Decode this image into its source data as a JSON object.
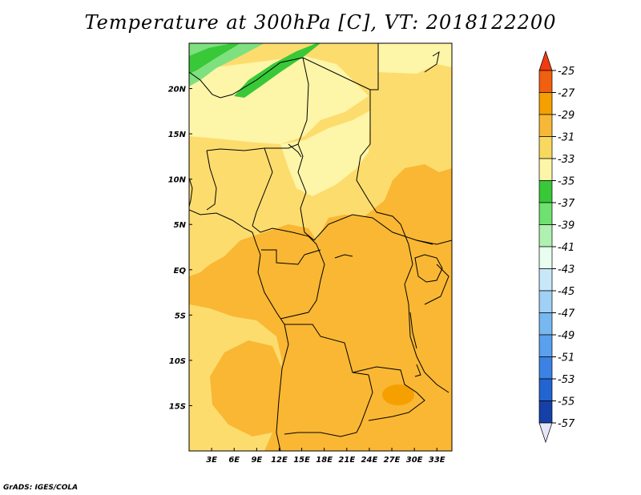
{
  "title": "Temperature at 300hPa [C], VT: 2018122200",
  "credit": "GrADS: IGES/COLA",
  "map": {
    "lon_range": [
      0,
      35
    ],
    "lat_range": [
      -20,
      25
    ],
    "x_ticks": [
      {
        "lon": 3,
        "label": "3E"
      },
      {
        "lon": 6,
        "label": "6E"
      },
      {
        "lon": 9,
        "label": "9E"
      },
      {
        "lon": 12,
        "label": "12E"
      },
      {
        "lon": 15,
        "label": "15E"
      },
      {
        "lon": 18,
        "label": "18E"
      },
      {
        "lon": 21,
        "label": "21E"
      },
      {
        "lon": 24,
        "label": "24E"
      },
      {
        "lon": 27,
        "label": "27E"
      },
      {
        "lon": 30,
        "label": "30E"
      },
      {
        "lon": 33,
        "label": "33E"
      }
    ],
    "y_ticks": [
      {
        "lat": 20,
        "label": "20N"
      },
      {
        "lat": 15,
        "label": "15N"
      },
      {
        "lat": 10,
        "label": "10N"
      },
      {
        "lat": 5,
        "label": "5N"
      },
      {
        "lat": 0,
        "label": "EQ"
      },
      {
        "lat": -5,
        "label": "5S"
      },
      {
        "lat": -10,
        "label": "10S"
      },
      {
        "lat": -15,
        "label": "15S"
      }
    ]
  },
  "colorbar": {
    "levels": [
      "-25",
      "-27",
      "-29",
      "-31",
      "-33",
      "-35",
      "-37",
      "-39",
      "-41",
      "-43",
      "-45",
      "-47",
      "-49",
      "-51",
      "-53",
      "-55",
      "-57"
    ],
    "top_arrow_color": "#f03c10",
    "bottom_arrow_color": "#e6e6fa",
    "colors": [
      "#f06010",
      "#f5a000",
      "#f7b838",
      "#f9d860",
      "#fdf5a8",
      "#38c838",
      "#70e070",
      "#b0f0b0",
      "#e8fff0",
      "#c8e8fa",
      "#a0d0f5",
      "#78b8f0",
      "#5aa0ec",
      "#3c82e4",
      "#2264d0",
      "#1440a8",
      "#0a0a78"
    ]
  },
  "field_colors": {
    "orange": "#f9b733",
    "dark_orange": "#f5a000",
    "yellow": "#fddc6e",
    "pale_yellow": "#fdf5a8",
    "green": "#38c838",
    "light_green": "#7ee07e"
  }
}
